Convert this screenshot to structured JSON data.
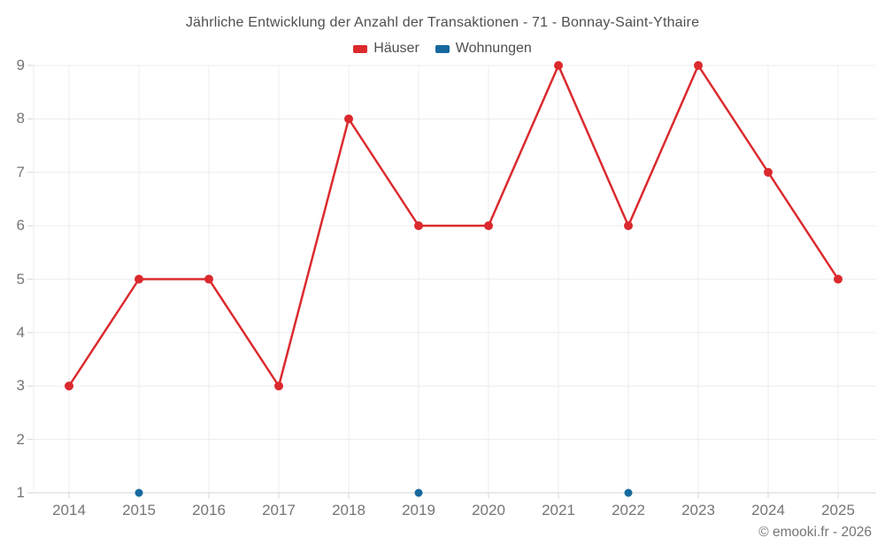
{
  "page": {
    "background": "#ffffff",
    "footer_credit": "© emooki.fr - 2026"
  },
  "chart_data": {
    "type": "line",
    "title": "Jährliche Entwicklung der Anzahl der Transaktionen - 71 - Bonnay-Saint-Ythaire",
    "categories": [
      "2014",
      "2015",
      "2016",
      "2017",
      "2018",
      "2019",
      "2020",
      "2021",
      "2022",
      "2023",
      "2024",
      "2025"
    ],
    "series": [
      {
        "name": "Häuser",
        "color": "#db2a2e",
        "marker": "circle",
        "values": [
          3,
          5,
          5,
          3,
          8,
          6,
          6,
          9,
          6,
          9,
          7,
          5
        ]
      },
      {
        "name": "Wohnungen",
        "color": "#16699e",
        "marker": "circle",
        "values": [
          null,
          1,
          null,
          null,
          null,
          1,
          null,
          null,
          1,
          null,
          null,
          null
        ]
      }
    ],
    "xlabel": "",
    "ylabel": "",
    "ylim": [
      1,
      9
    ],
    "yticks": [
      1,
      2,
      3,
      4,
      5,
      6,
      7,
      8,
      9
    ],
    "grid": true,
    "legend_position": "top"
  },
  "colors": {
    "grid": "#ececec",
    "axis": "#d6d6d6",
    "tick_label": "#757575",
    "title_text": "#4f4f4f"
  }
}
